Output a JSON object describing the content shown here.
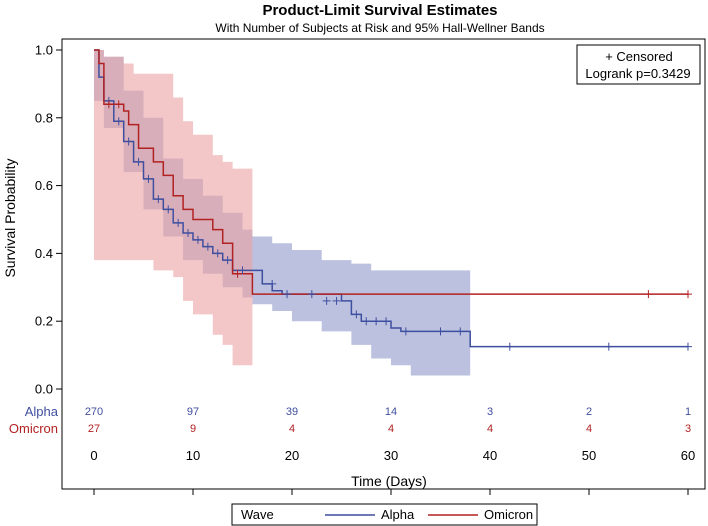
{
  "chart_data": {
    "type": "line",
    "subtype": "kaplan-meier",
    "title": "Product-Limit Survival Estimates",
    "subtitle": "With Number of Subjects at Risk and 95% Hall-Wellner Bands",
    "xlabel": "Time (Days)",
    "ylabel": "Survival Probability",
    "xlim": [
      0,
      60
    ],
    "ylim": [
      0,
      1
    ],
    "x_ticks": [
      "0",
      "10",
      "20",
      "30",
      "40",
      "50",
      "60"
    ],
    "y_ticks": [
      "0.0",
      "0.2",
      "0.4",
      "0.6",
      "0.8",
      "1.0"
    ],
    "grid": false,
    "legend": {
      "title": "Wave",
      "placement": "bottom",
      "entries": [
        "Alpha",
        "Omicron"
      ]
    },
    "inset": {
      "censored_label": "+ Censored",
      "logrank": "Logrank p=0.3429",
      "placement": "top-right"
    },
    "series": [
      {
        "name": "Alpha",
        "color": "#3f4fa0",
        "band_color": "#8e97c9",
        "steps": [
          [
            0,
            1.0
          ],
          [
            0.5,
            0.92
          ],
          [
            1,
            0.85
          ],
          [
            2,
            0.79
          ],
          [
            3,
            0.73
          ],
          [
            4,
            0.67
          ],
          [
            5,
            0.62
          ],
          [
            6,
            0.56
          ],
          [
            7,
            0.53
          ],
          [
            8,
            0.49
          ],
          [
            9,
            0.46
          ],
          [
            10,
            0.44
          ],
          [
            11,
            0.42
          ],
          [
            12,
            0.4
          ],
          [
            13,
            0.38
          ],
          [
            14,
            0.35
          ],
          [
            17,
            0.31
          ],
          [
            18,
            0.29
          ],
          [
            19,
            0.28
          ],
          [
            25,
            0.26
          ],
          [
            26,
            0.22
          ],
          [
            27,
            0.2
          ],
          [
            30,
            0.18
          ],
          [
            31,
            0.17
          ],
          [
            38,
            0.125
          ],
          [
            60,
            0.125
          ]
        ],
        "band": [
          [
            0,
            0.85,
            1.0
          ],
          [
            1,
            0.77,
            0.98
          ],
          [
            3,
            0.64,
            0.88
          ],
          [
            5,
            0.53,
            0.8
          ],
          [
            7,
            0.45,
            0.68
          ],
          [
            9,
            0.38,
            0.62
          ],
          [
            11,
            0.34,
            0.57
          ],
          [
            13,
            0.3,
            0.52
          ],
          [
            15,
            0.27,
            0.47
          ],
          [
            16,
            0.25,
            0.45
          ],
          [
            18,
            0.23,
            0.43
          ],
          [
            20,
            0.2,
            0.41
          ],
          [
            23,
            0.17,
            0.38
          ],
          [
            26,
            0.13,
            0.37
          ],
          [
            28,
            0.09,
            0.35
          ],
          [
            30,
            0.07,
            0.35
          ],
          [
            32,
            0.04,
            0.35
          ],
          [
            38,
            0.04,
            0.35
          ]
        ],
        "censored": [
          [
            1.5,
            0.85
          ],
          [
            2.5,
            0.79
          ],
          [
            3.5,
            0.73
          ],
          [
            4.5,
            0.67
          ],
          [
            5.5,
            0.62
          ],
          [
            6.5,
            0.56
          ],
          [
            7.5,
            0.53
          ],
          [
            8.5,
            0.49
          ],
          [
            9.5,
            0.46
          ],
          [
            10.5,
            0.44
          ],
          [
            11.5,
            0.42
          ],
          [
            12.5,
            0.4
          ],
          [
            13.5,
            0.38
          ],
          [
            15,
            0.35
          ],
          [
            18,
            0.31
          ],
          [
            19.5,
            0.28
          ],
          [
            22,
            0.28
          ],
          [
            23.5,
            0.26
          ],
          [
            24.5,
            0.26
          ],
          [
            26.5,
            0.22
          ],
          [
            27.5,
            0.2
          ],
          [
            28.5,
            0.2
          ],
          [
            29.5,
            0.2
          ],
          [
            31.5,
            0.17
          ],
          [
            35,
            0.17
          ],
          [
            37,
            0.17
          ],
          [
            42,
            0.125
          ],
          [
            52,
            0.125
          ],
          [
            60,
            0.125
          ]
        ],
        "at_risk": [
          {
            "x": 0,
            "n": "270"
          },
          {
            "x": 10,
            "n": "97"
          },
          {
            "x": 20,
            "n": "39"
          },
          {
            "x": 30,
            "n": "14"
          },
          {
            "x": 40,
            "n": "3"
          },
          {
            "x": 50,
            "n": "2"
          },
          {
            "x": 60,
            "n": "1"
          }
        ]
      },
      {
        "name": "Omicron",
        "color": "#b22222",
        "band_color": "#eba1a1",
        "steps": [
          [
            0,
            1.0
          ],
          [
            0.5,
            0.96
          ],
          [
            1,
            0.84
          ],
          [
            3,
            0.82
          ],
          [
            3.5,
            0.78
          ],
          [
            4.5,
            0.71
          ],
          [
            6,
            0.67
          ],
          [
            7,
            0.63
          ],
          [
            8,
            0.57
          ],
          [
            9,
            0.53
          ],
          [
            10,
            0.5
          ],
          [
            12,
            0.47
          ],
          [
            13,
            0.43
          ],
          [
            14,
            0.34
          ],
          [
            15,
            0.34
          ],
          [
            16,
            0.28
          ],
          [
            60,
            0.28
          ]
        ],
        "band": [
          [
            0,
            0.38,
            1.0
          ],
          [
            1,
            0.38,
            0.98
          ],
          [
            3,
            0.38,
            0.96
          ],
          [
            4,
            0.38,
            0.93
          ],
          [
            6,
            0.35,
            0.93
          ],
          [
            8,
            0.33,
            0.86
          ],
          [
            9,
            0.26,
            0.79
          ],
          [
            10,
            0.22,
            0.75
          ],
          [
            12,
            0.16,
            0.69
          ],
          [
            13,
            0.13,
            0.67
          ],
          [
            14,
            0.07,
            0.65
          ],
          [
            16,
            0.07,
            0.65
          ]
        ],
        "censored": [
          [
            1.5,
            0.84
          ],
          [
            2.5,
            0.84
          ],
          [
            14.5,
            0.34
          ],
          [
            56,
            0.28
          ],
          [
            60,
            0.28
          ]
        ],
        "at_risk": [
          {
            "x": 0,
            "n": "27"
          },
          {
            "x": 10,
            "n": "9"
          },
          {
            "x": 20,
            "n": "4"
          },
          {
            "x": 30,
            "n": "4"
          },
          {
            "x": 40,
            "n": "4"
          },
          {
            "x": 50,
            "n": "4"
          },
          {
            "x": 60,
            "n": "3"
          }
        ]
      }
    ]
  }
}
